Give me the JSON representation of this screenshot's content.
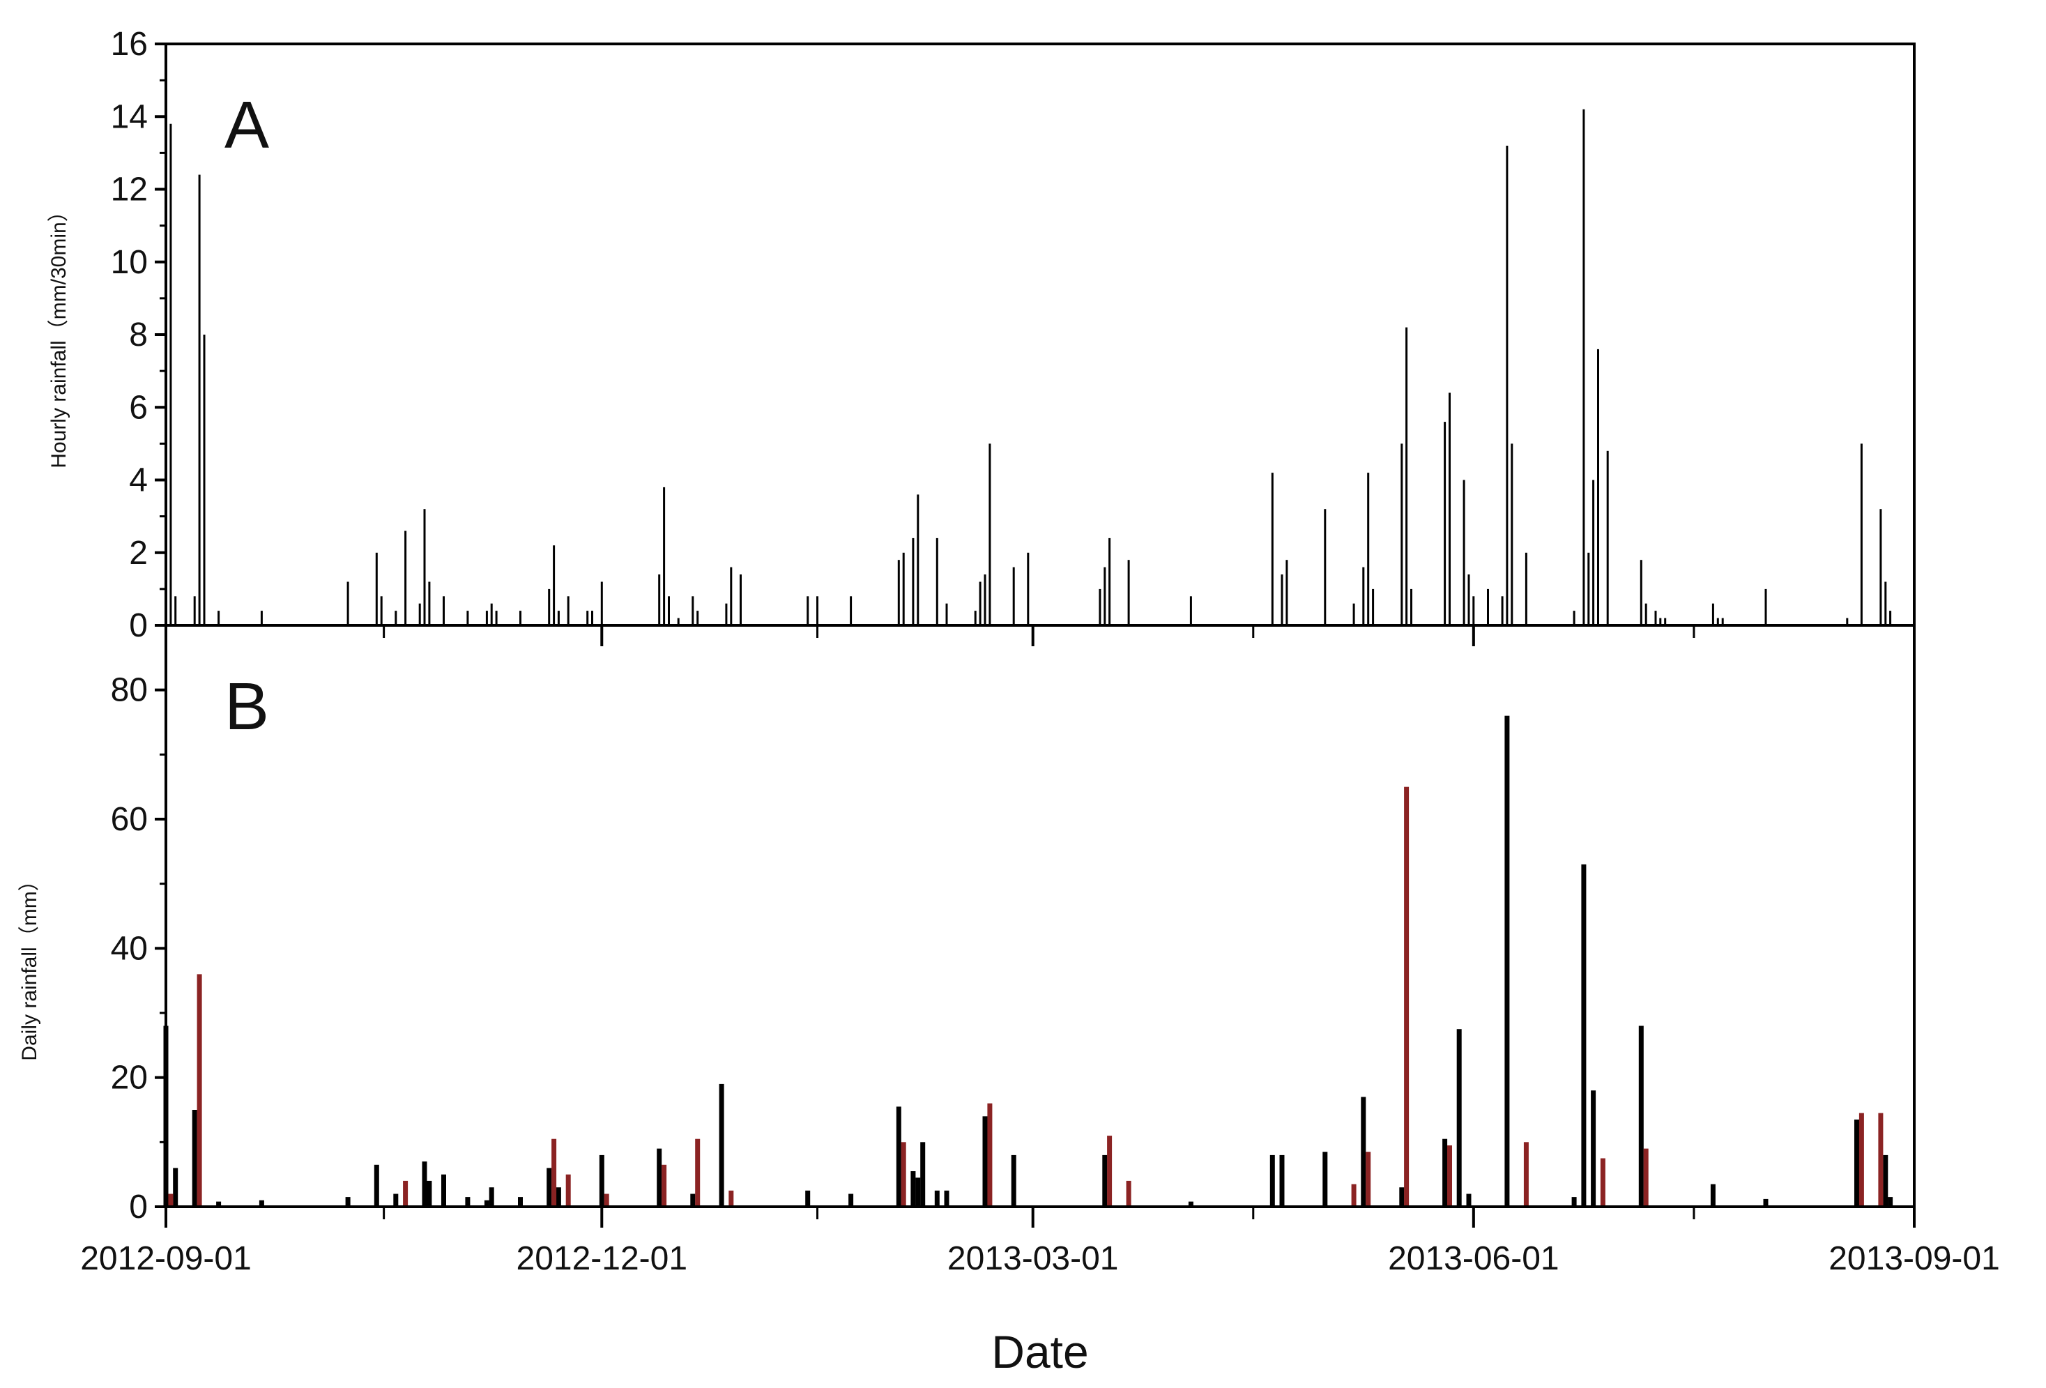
{
  "chart_data": [
    {
      "panel": "A",
      "type": "bar",
      "ylabel": "Hourly rainfall（mm/30min）",
      "xlabel": "",
      "ylim": [
        0,
        16
      ],
      "xlim": [
        "2012-09-01",
        "2013-09-01"
      ],
      "yticks": [
        0,
        2,
        4,
        6,
        8,
        10,
        12,
        14,
        16
      ],
      "xticks": [
        "2012-09-01",
        "2012-12-01",
        "2013-03-01",
        "2013-06-01",
        "2013-09-01"
      ],
      "series": [
        {
          "color": "#000000",
          "points": [
            [
              "2012-09-02",
              13.8
            ],
            [
              "2012-09-03",
              0.8
            ],
            [
              "2012-09-07",
              0.8
            ],
            [
              "2012-09-08",
              12.4
            ],
            [
              "2012-09-09",
              8.0
            ],
            [
              "2012-09-12",
              0.4
            ],
            [
              "2012-09-21",
              0.4
            ],
            [
              "2012-10-09",
              1.2
            ],
            [
              "2012-10-15",
              2.0
            ],
            [
              "2012-10-16",
              0.8
            ],
            [
              "2012-10-19",
              0.4
            ],
            [
              "2012-10-21",
              2.6
            ],
            [
              "2012-10-24",
              0.6
            ],
            [
              "2012-10-25",
              3.2
            ],
            [
              "2012-10-26",
              1.2
            ],
            [
              "2012-10-29",
              0.8
            ],
            [
              "2012-11-03",
              0.4
            ],
            [
              "2012-11-07",
              0.4
            ],
            [
              "2012-11-08",
              0.6
            ],
            [
              "2012-11-09",
              0.4
            ],
            [
              "2012-11-14",
              0.4
            ],
            [
              "2012-11-20",
              1.0
            ],
            [
              "2012-11-21",
              2.2
            ],
            [
              "2012-11-22",
              0.4
            ],
            [
              "2012-11-24",
              0.8
            ],
            [
              "2012-11-28",
              0.4
            ],
            [
              "2012-11-29",
              0.4
            ],
            [
              "2012-12-01",
              1.2
            ],
            [
              "2012-12-13",
              1.4
            ],
            [
              "2012-12-14",
              3.8
            ],
            [
              "2012-12-15",
              0.8
            ],
            [
              "2012-12-17",
              0.2
            ],
            [
              "2012-12-20",
              0.8
            ],
            [
              "2012-12-21",
              0.4
            ],
            [
              "2012-12-27",
              0.6
            ],
            [
              "2012-12-28",
              1.6
            ],
            [
              "2012-12-30",
              1.4
            ],
            [
              "2013-01-13",
              0.8
            ],
            [
              "2013-01-15",
              0.8
            ],
            [
              "2013-01-22",
              0.8
            ],
            [
              "2013-02-01",
              1.8
            ],
            [
              "2013-02-02",
              2.0
            ],
            [
              "2013-02-04",
              2.4
            ],
            [
              "2013-02-05",
              3.6
            ],
            [
              "2013-02-09",
              2.4
            ],
            [
              "2013-02-11",
              0.6
            ],
            [
              "2013-02-17",
              0.4
            ],
            [
              "2013-02-18",
              1.2
            ],
            [
              "2013-02-19",
              1.4
            ],
            [
              "2013-02-20",
              5.0
            ],
            [
              "2013-02-25",
              1.6
            ],
            [
              "2013-02-28",
              2.0
            ],
            [
              "2013-03-15",
              1.0
            ],
            [
              "2013-03-16",
              1.6
            ],
            [
              "2013-03-17",
              2.4
            ],
            [
              "2013-03-21",
              1.8
            ],
            [
              "2013-04-03",
              0.8
            ],
            [
              "2013-04-20",
              4.2
            ],
            [
              "2013-04-22",
              1.4
            ],
            [
              "2013-04-23",
              1.8
            ],
            [
              "2013-05-01",
              3.2
            ],
            [
              "2013-05-07",
              0.6
            ],
            [
              "2013-05-09",
              1.6
            ],
            [
              "2013-05-10",
              4.2
            ],
            [
              "2013-05-11",
              1.0
            ],
            [
              "2013-05-17",
              5.0
            ],
            [
              "2013-05-18",
              8.2
            ],
            [
              "2013-05-19",
              1.0
            ],
            [
              "2013-05-26",
              5.6
            ],
            [
              "2013-05-27",
              6.4
            ],
            [
              "2013-05-30",
              4.0
            ],
            [
              "2013-05-31",
              1.4
            ],
            [
              "2013-06-01",
              0.8
            ],
            [
              "2013-06-04",
              1.0
            ],
            [
              "2013-06-07",
              0.8
            ],
            [
              "2013-06-08",
              13.2
            ],
            [
              "2013-06-09",
              5.0
            ],
            [
              "2013-06-12",
              2.0
            ],
            [
              "2013-06-22",
              0.4
            ],
            [
              "2013-06-24",
              14.2
            ],
            [
              "2013-06-25",
              2.0
            ],
            [
              "2013-06-26",
              4.0
            ],
            [
              "2013-06-27",
              7.6
            ],
            [
              "2013-06-29",
              4.8
            ],
            [
              "2013-07-06",
              1.8
            ],
            [
              "2013-07-07",
              0.6
            ],
            [
              "2013-07-09",
              0.4
            ],
            [
              "2013-07-10",
              0.2
            ],
            [
              "2013-07-11",
              0.2
            ],
            [
              "2013-07-21",
              0.6
            ],
            [
              "2013-07-22",
              0.2
            ],
            [
              "2013-07-23",
              0.2
            ],
            [
              "2013-08-01",
              1.0
            ],
            [
              "2013-08-18",
              0.2
            ],
            [
              "2013-08-21",
              5.0
            ],
            [
              "2013-08-25",
              3.2
            ],
            [
              "2013-08-26",
              1.2
            ],
            [
              "2013-08-27",
              0.4
            ]
          ]
        }
      ]
    },
    {
      "panel": "B",
      "type": "bar",
      "ylabel": "Daily rainfall（mm）",
      "xlabel": "Date",
      "ylim": [
        0,
        90
      ],
      "xlim": [
        "2012-09-01",
        "2013-09-01"
      ],
      "yticks": [
        0,
        20,
        40,
        60,
        80
      ],
      "xticks": [
        "2012-09-01",
        "2012-12-01",
        "2013-03-01",
        "2013-06-01",
        "2013-09-01"
      ],
      "series": [
        {
          "color": "#000000",
          "points": [
            [
              "2012-09-01",
              28
            ],
            [
              "2012-09-03",
              6
            ],
            [
              "2012-09-07",
              15
            ],
            [
              "2012-09-12",
              0.8
            ],
            [
              "2012-09-21",
              1
            ],
            [
              "2012-10-09",
              1.5
            ],
            [
              "2012-10-15",
              6.5
            ],
            [
              "2012-10-19",
              2
            ],
            [
              "2012-10-25",
              7
            ],
            [
              "2012-10-26",
              4
            ],
            [
              "2012-10-29",
              5
            ],
            [
              "2012-11-03",
              1.5
            ],
            [
              "2012-11-07",
              1
            ],
            [
              "2012-11-08",
              3
            ],
            [
              "2012-11-14",
              1.5
            ],
            [
              "2012-11-20",
              6
            ],
            [
              "2012-11-22",
              3
            ],
            [
              "2012-12-01",
              8
            ],
            [
              "2012-12-13",
              9
            ],
            [
              "2012-12-20",
              2
            ],
            [
              "2012-12-26",
              19
            ],
            [
              "2013-01-13",
              2.5
            ],
            [
              "2013-01-22",
              2
            ],
            [
              "2013-02-01",
              15.5
            ],
            [
              "2013-02-04",
              5.5
            ],
            [
              "2013-02-05",
              4.5
            ],
            [
              "2013-02-06",
              10
            ],
            [
              "2013-02-09",
              2.5
            ],
            [
              "2013-02-11",
              2.5
            ],
            [
              "2013-02-19",
              14
            ],
            [
              "2013-02-25",
              8
            ],
            [
              "2013-03-16",
              8
            ],
            [
              "2013-04-03",
              0.8
            ],
            [
              "2013-04-20",
              8
            ],
            [
              "2013-04-22",
              8
            ],
            [
              "2013-05-01",
              8.5
            ],
            [
              "2013-05-09",
              17
            ],
            [
              "2013-05-17",
              3
            ],
            [
              "2013-05-26",
              10.5
            ],
            [
              "2013-05-29",
              27.5
            ],
            [
              "2013-05-31",
              2
            ],
            [
              "2013-06-08",
              76
            ],
            [
              "2013-06-22",
              1.5
            ],
            [
              "2013-06-24",
              53
            ],
            [
              "2013-06-26",
              18
            ],
            [
              "2013-07-06",
              28
            ],
            [
              "2013-07-21",
              3.5
            ],
            [
              "2013-08-01",
              1.2
            ],
            [
              "2013-08-20",
              13.5
            ],
            [
              "2013-08-26",
              8
            ],
            [
              "2013-08-27",
              1.5
            ]
          ]
        },
        {
          "color": "#8b2323",
          "points": [
            [
              "2012-09-02",
              2
            ],
            [
              "2012-09-08",
              36
            ],
            [
              "2012-10-21",
              4
            ],
            [
              "2012-11-21",
              10.5
            ],
            [
              "2012-11-24",
              5
            ],
            [
              "2012-12-02",
              2
            ],
            [
              "2012-12-14",
              6.5
            ],
            [
              "2012-12-21",
              10.5
            ],
            [
              "2012-12-28",
              2.5
            ],
            [
              "2013-02-02",
              10
            ],
            [
              "2013-02-20",
              16
            ],
            [
              "2013-03-17",
              11
            ],
            [
              "2013-03-21",
              4
            ],
            [
              "2013-05-07",
              3.5
            ],
            [
              "2013-05-10",
              8.5
            ],
            [
              "2013-05-18",
              65
            ],
            [
              "2013-05-27",
              9.5
            ],
            [
              "2013-06-12",
              10
            ],
            [
              "2013-06-28",
              7.5
            ],
            [
              "2013-07-07",
              9
            ],
            [
              "2013-08-21",
              14.5
            ],
            [
              "2013-08-25",
              14.5
            ]
          ]
        }
      ]
    }
  ]
}
